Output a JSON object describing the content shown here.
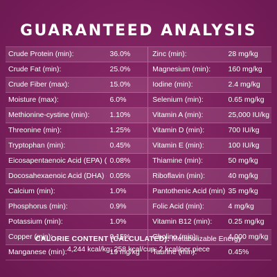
{
  "title": "GUARANTEED ANALYSIS",
  "left_rows": [
    {
      "name": "Crude Protein (min):",
      "value": "36.0%"
    },
    {
      "name": "Crude Fat (min):",
      "value": "25.0%"
    },
    {
      "name": "Crude Fiber (max):",
      "value": "15.0%"
    },
    {
      "name": "Moisture (max):",
      "value": "6.0%"
    },
    {
      "name": "Methionine-cystine (min):",
      "value": "1.10%"
    },
    {
      "name": "Threonine (min):",
      "value": "1.25%"
    },
    {
      "name": "Tryptophan (min):",
      "value": "0.45%"
    },
    {
      "name": "Eicosapentaenoic Acid (EPA) (min):",
      "value": "0.08%"
    },
    {
      "name": "Docosahexaenoic Acid (DHA) (min):",
      "value": "0.05%"
    },
    {
      "name": "Calcium (min):",
      "value": "1.0%"
    },
    {
      "name": "Phosphorus (min):",
      "value": "0.9%"
    },
    {
      "name": "Potassium (min):",
      "value": "1.0%"
    },
    {
      "name": "Copper (min):",
      "value": "0.15%"
    },
    {
      "name": "Manganese (min):",
      "value": "19 mg/kg"
    }
  ],
  "right_rows": [
    {
      "name": "Zinc (min):",
      "value": "28 mg/kg"
    },
    {
      "name": "Magnesium (min):",
      "value": "160 mg/kg"
    },
    {
      "name": "Iodine (min):",
      "value": "2.4 mg/kg"
    },
    {
      "name": "Selenium (min):",
      "value": "0.65 mg/kg"
    },
    {
      "name": "Vitamin A (min):",
      "value": "25,000 IU/kg"
    },
    {
      "name": "Vitamin D (min):",
      "value": "700 IU/kg"
    },
    {
      "name": "Vitamin E (min):",
      "value": "100 IU/kg"
    },
    {
      "name": "Thiamine (min):",
      "value": "50 mg/kg"
    },
    {
      "name": "Riboflavin (min):",
      "value": "40 mg/kg"
    },
    {
      "name": "Pantothenic Acid (min):",
      "value": "35 mg/kg"
    },
    {
      "name": "Folic Acid (min):",
      "value": "4 mg/kg"
    },
    {
      "name": "Vitamin B12 (min):",
      "value": "0.25 mg/kg"
    },
    {
      "name": "Choline (min):",
      "value": "4,000 mg/kg"
    },
    {
      "name": "Taurine (min):",
      "value": "0.45%"
    }
  ],
  "calorie": {
    "label": "CALORIE CONTENT (CALCULATED):",
    "label_suffix": " Metabolizable Energy",
    "values": "4,244 kcal/kg; 258 kcal/cup; 2 kcal/per piece"
  },
  "colors": {
    "background": "#7a1f5c",
    "text": "#ffffff"
  }
}
